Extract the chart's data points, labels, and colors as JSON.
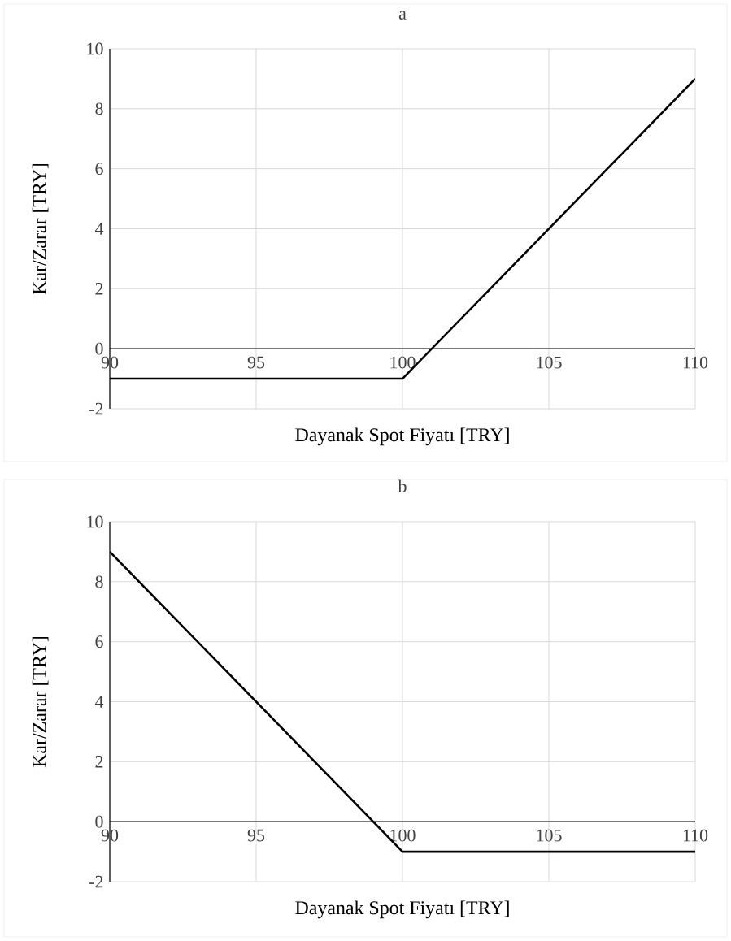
{
  "chart_data": [
    {
      "type": "line",
      "title": "a",
      "xlabel": "Dayanak Spot Fiyatı [TRY]",
      "ylabel": "Kar/Zarar [TRY]",
      "x": [
        90,
        100,
        110
      ],
      "series": [
        {
          "color": "#000000",
          "values": [
            -1,
            -1,
            9
          ]
        }
      ],
      "xlim": [
        90,
        110
      ],
      "ylim": [
        -2,
        10
      ],
      "xticks": [
        90,
        95,
        100,
        105,
        110
      ],
      "yticks": [
        -2,
        0,
        2,
        4,
        6,
        8,
        10
      ],
      "grid": true
    },
    {
      "type": "line",
      "title": "b",
      "xlabel": "Dayanak Spot Fiyatı [TRY]",
      "ylabel": "Kar/Zarar [TRY]",
      "x": [
        90,
        100,
        110
      ],
      "series": [
        {
          "color": "#000000",
          "values": [
            9,
            -1,
            -1
          ]
        }
      ],
      "xlim": [
        90,
        110
      ],
      "ylim": [
        -2,
        10
      ],
      "xticks": [
        90,
        95,
        100,
        105,
        110
      ],
      "yticks": [
        -2,
        0,
        2,
        4,
        6,
        8,
        10
      ],
      "grid": true
    }
  ]
}
